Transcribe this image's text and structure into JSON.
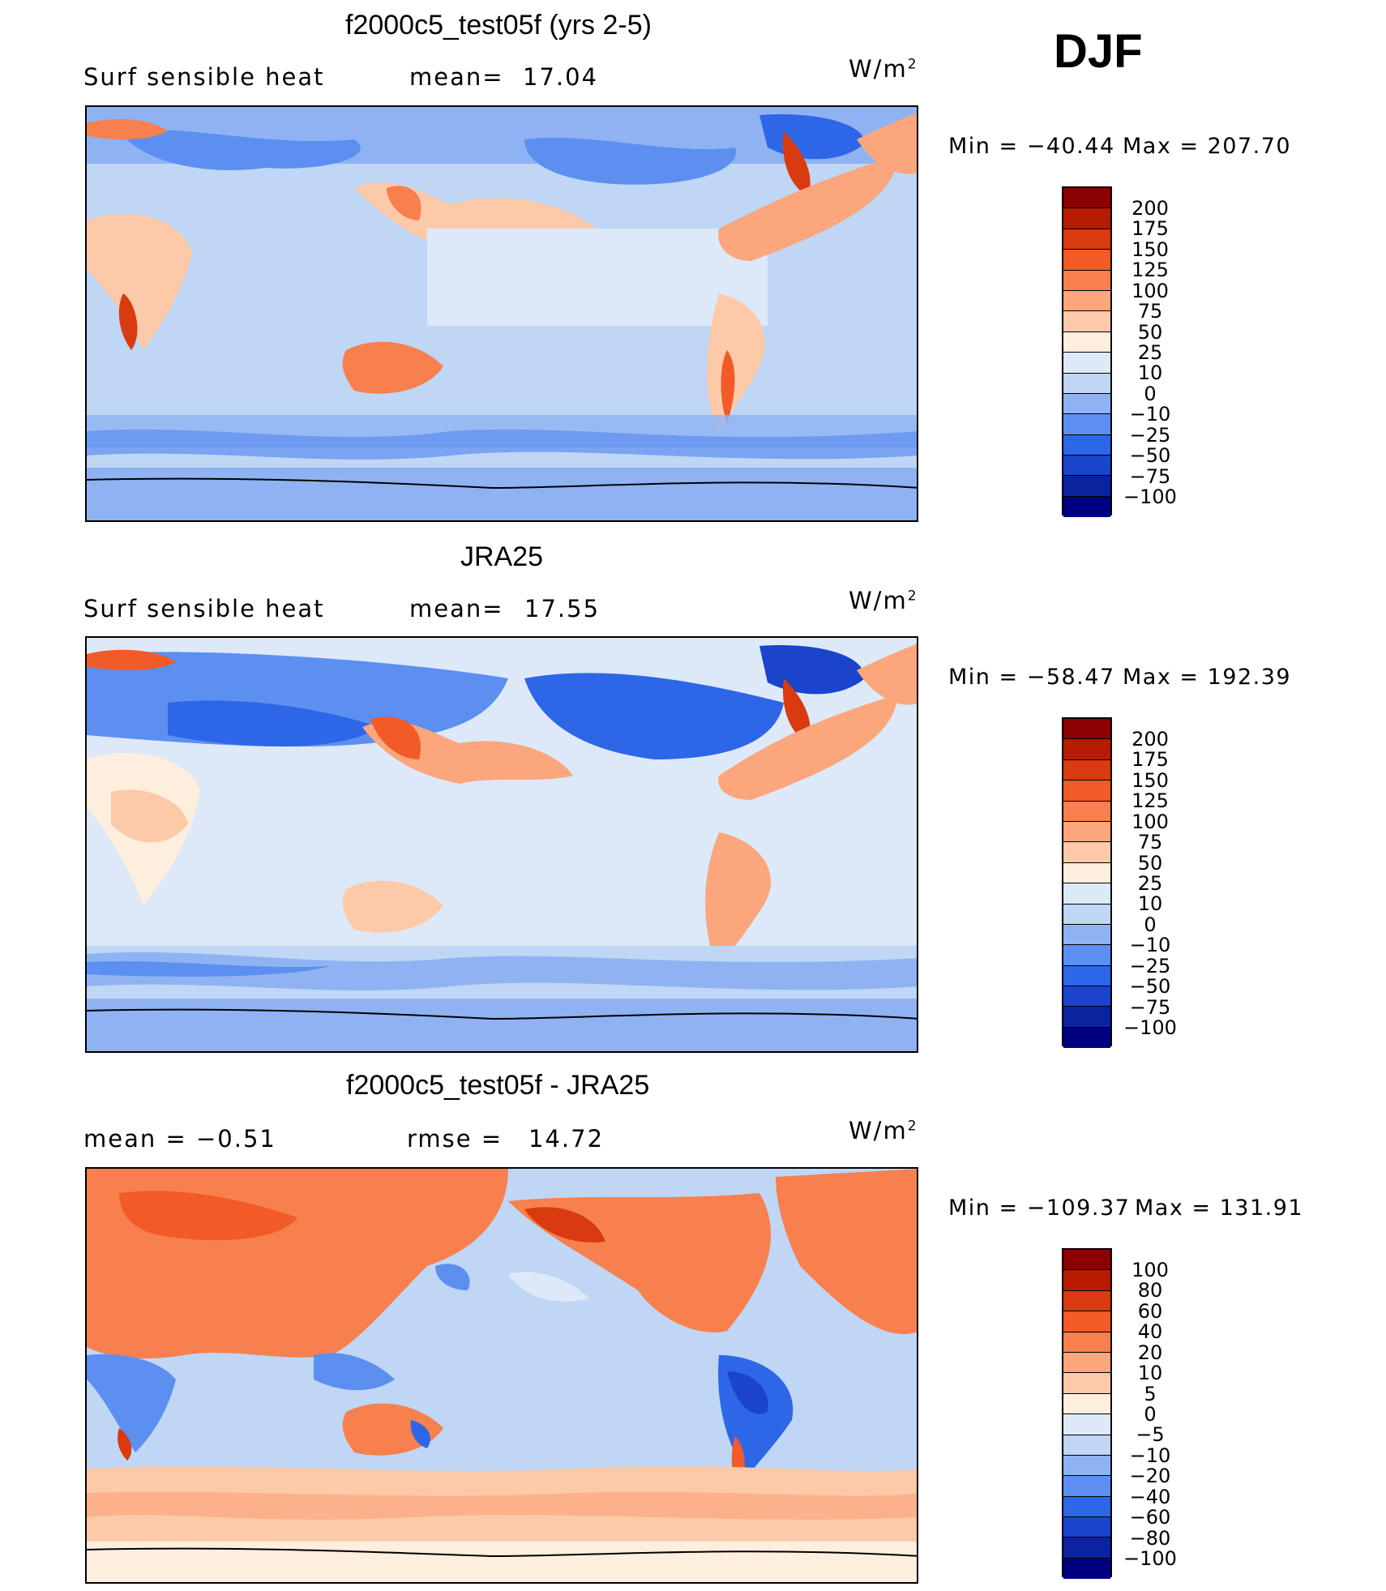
{
  "season": "DJF",
  "panels": [
    {
      "id": "model",
      "title": "f2000c5_test05f (yrs 2-5)",
      "left_label": "Surf  sensible heat",
      "center_label": "mean=",
      "center_value": "17.04",
      "units": "W/m",
      "units_exp": "2",
      "min_label": "Min  =  −40.44",
      "max_label": "Max  =  207.70",
      "colorbar_levels": [
        "200",
        "175",
        "150",
        "125",
        "100",
        "75",
        "50",
        "25",
        "10",
        "0",
        "−10",
        "−25",
        "−50",
        "−75",
        "−100"
      ],
      "colorbar_colors": [
        "#8b0000",
        "#b81c00",
        "#d93a10",
        "#f25a28",
        "#f7804e",
        "#fba67c",
        "#fccaa8",
        "#feeedd",
        "#dde9f8",
        "#bfd6f5",
        "#8fb3f2",
        "#5c8ff0",
        "#2e66e8",
        "#1a44cc",
        "#0b239e",
        "#000080"
      ]
    },
    {
      "id": "obs",
      "title": "JRA25",
      "left_label": "Surf  sensible heat",
      "center_label": "mean=",
      "center_value": "17.55",
      "units": "W/m",
      "units_exp": "2",
      "min_label": "Min  =  −58.47",
      "max_label": "Max  =  192.39",
      "colorbar_levels": [
        "200",
        "175",
        "150",
        "125",
        "100",
        "75",
        "50",
        "25",
        "10",
        "0",
        "−10",
        "−25",
        "−50",
        "−75",
        "−100"
      ],
      "colorbar_colors": [
        "#8b0000",
        "#b81c00",
        "#d93a10",
        "#f25a28",
        "#f7804e",
        "#fba67c",
        "#fccaa8",
        "#feeedd",
        "#dde9f8",
        "#bfd6f5",
        "#8fb3f2",
        "#5c8ff0",
        "#2e66e8",
        "#1a44cc",
        "#0b239e",
        "#000080"
      ]
    },
    {
      "id": "diff",
      "title": "f2000c5_test05f - JRA25",
      "left_label": "mean  =     −0.51",
      "center_label": "rmse  =",
      "center_value": "14.72",
      "units": "W/m",
      "units_exp": "2",
      "min_label": "Min  =  −109.37",
      "max_label": "Max  =  131.91",
      "colorbar_levels": [
        "100",
        "80",
        "60",
        "40",
        "20",
        "10",
        "5",
        "0",
        "−5",
        "−10",
        "−20",
        "−40",
        "−60",
        "−80",
        "−100"
      ],
      "colorbar_colors": [
        "#8b0000",
        "#b81c00",
        "#d93a10",
        "#f25a28",
        "#f7804e",
        "#fba67c",
        "#fccaa8",
        "#feeedd",
        "#dde9f8",
        "#bfd6f5",
        "#8fb3f2",
        "#5c8ff0",
        "#2e66e8",
        "#1a44cc",
        "#0b239e",
        "#000080"
      ]
    }
  ]
}
